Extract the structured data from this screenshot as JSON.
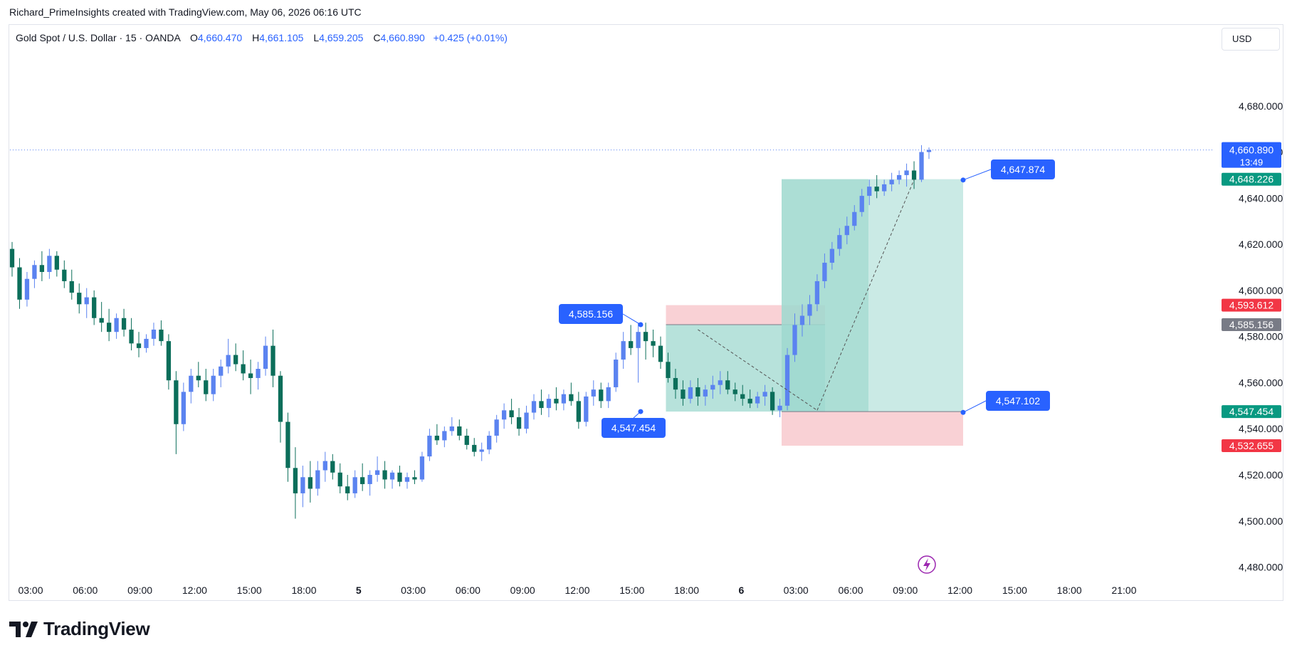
{
  "attribution": "Richard_PrimeInsights created with TradingView.com, May 06, 2026 06:16 UTC",
  "legend": {
    "symbol": "Gold Spot / U.S. Dollar · 15 · OANDA",
    "open_label": "O",
    "open": "4,660.470",
    "high_label": "H",
    "high": "4,661.105",
    "low_label": "L",
    "low": "4,659.205",
    "close_label": "C",
    "close": "4,660.890",
    "change": "+0.425 (+0.01%)"
  },
  "currency": "USD",
  "brand": "TradingView",
  "colors": {
    "up": "#5b83f0",
    "down": "#0b6e5a",
    "accent": "#2962ff",
    "profit_zone": "#9fd8cf",
    "loss_zone": "#f7c6cb",
    "red_label": "#f23645",
    "grey_label": "#787b86",
    "green_label": "#089981"
  },
  "chart_data": {
    "type": "candlestick",
    "y_ticks": [
      "4,680.000",
      "4,660.000",
      "4,640.000",
      "4,620.000",
      "4,600.000",
      "4,580.000",
      "4,560.000",
      "4,540.000",
      "4,520.000",
      "4,500.000",
      "4,480.000"
    ],
    "x_ticks": [
      "03:00",
      "06:00",
      "09:00",
      "12:00",
      "15:00",
      "18:00",
      "5",
      "03:00",
      "06:00",
      "09:00",
      "12:00",
      "15:00",
      "18:00",
      "6",
      "03:00",
      "06:00",
      "09:00",
      "12:00",
      "15:00",
      "18:00",
      "21:00"
    ],
    "ylim": [
      4474,
      4700
    ],
    "price_line": 4660.89,
    "price_countdown": "13:49",
    "price_labels": [
      {
        "value": 4660.89,
        "text": "4,660.890",
        "kind": "current"
      },
      {
        "value": 4648.226,
        "text": "4,648.226",
        "kind": "green"
      },
      {
        "value": 4593.612,
        "text": "4,593.612",
        "kind": "red"
      },
      {
        "value": 4585.156,
        "text": "4,585.156",
        "kind": "grey"
      },
      {
        "value": 4547.454,
        "text": "4,547.454",
        "kind": "green"
      },
      {
        "value": 4532.655,
        "text": "4,532.655",
        "kind": "red"
      }
    ],
    "callouts": [
      {
        "text": "4,585.156",
        "value": 4585.156
      },
      {
        "text": "4,547.454",
        "value": 4547.454
      },
      {
        "text": "4,647.874",
        "value": 4647.874
      },
      {
        "text": "4,547.102",
        "value": 4547.102
      }
    ],
    "positions": [
      {
        "entry": 4585.156,
        "target": 4547.454,
        "stop": 4593.612,
        "direction": "short"
      },
      {
        "entry": 4547.454,
        "target": 4648.226,
        "stop": 4532.655,
        "direction": "long"
      }
    ],
    "candles_ohlc": [
      [
        4618,
        4621,
        4606,
        4610
      ],
      [
        4610,
        4614,
        4592,
        4596
      ],
      [
        4596,
        4608,
        4593,
        4605
      ],
      [
        4605,
        4613,
        4601,
        4611
      ],
      [
        4611,
        4617,
        4604,
        4608
      ],
      [
        4608,
        4618,
        4605,
        4615
      ],
      [
        4615,
        4617,
        4606,
        4609
      ],
      [
        4609,
        4613,
        4601,
        4604
      ],
      [
        4604,
        4609,
        4596,
        4599
      ],
      [
        4599,
        4603,
        4590,
        4594
      ],
      [
        4594,
        4601,
        4588,
        4597
      ],
      [
        4597,
        4600,
        4585,
        4588
      ],
      [
        4588,
        4595,
        4582,
        4586
      ],
      [
        4586,
        4592,
        4578,
        4582
      ],
      [
        4582,
        4590,
        4579,
        4588
      ],
      [
        4588,
        4592,
        4580,
        4583
      ],
      [
        4583,
        4588,
        4574,
        4577
      ],
      [
        4577,
        4582,
        4571,
        4575
      ],
      [
        4575,
        4581,
        4573,
        4579
      ],
      [
        4579,
        4586,
        4576,
        4583
      ],
      [
        4583,
        4587,
        4576,
        4578
      ],
      [
        4578,
        4581,
        4557,
        4561
      ],
      [
        4561,
        4565,
        4529,
        4542
      ],
      [
        4542,
        4560,
        4539,
        4556
      ],
      [
        4556,
        4566,
        4551,
        4563
      ],
      [
        4563,
        4569,
        4558,
        4561
      ],
      [
        4561,
        4566,
        4552,
        4555
      ],
      [
        4555,
        4566,
        4552,
        4563
      ],
      [
        4563,
        4570,
        4558,
        4567
      ],
      [
        4567,
        4579,
        4564,
        4572
      ],
      [
        4572,
        4577,
        4565,
        4568
      ],
      [
        4568,
        4574,
        4561,
        4564
      ],
      [
        4564,
        4570,
        4555,
        4562
      ],
      [
        4562,
        4569,
        4557,
        4566
      ],
      [
        4566,
        4580,
        4563,
        4576
      ],
      [
        4576,
        4583,
        4558,
        4563
      ],
      [
        4563,
        4565,
        4534,
        4543
      ],
      [
        4543,
        4547,
        4517,
        4523
      ],
      [
        4523,
        4532,
        4501,
        4512
      ],
      [
        4512,
        4524,
        4506,
        4519
      ],
      [
        4519,
        4526,
        4508,
        4514
      ],
      [
        4514,
        4526,
        4511,
        4522
      ],
      [
        4522,
        4530,
        4517,
        4526
      ],
      [
        4526,
        4529,
        4518,
        4521
      ],
      [
        4521,
        4525,
        4512,
        4515
      ],
      [
        4515,
        4520,
        4509,
        4512
      ],
      [
        4512,
        4522,
        4510,
        4519
      ],
      [
        4519,
        4525,
        4513,
        4516
      ],
      [
        4516,
        4522,
        4511,
        4520
      ],
      [
        4520,
        4528,
        4517,
        4522
      ],
      [
        4522,
        4526,
        4514,
        4518
      ],
      [
        4518,
        4522,
        4514,
        4521
      ],
      [
        4521,
        4524,
        4515,
        4517
      ],
      [
        4517,
        4521,
        4514,
        4519
      ],
      [
        4519,
        4522,
        4516,
        4518
      ],
      [
        4518,
        4530,
        4517,
        4528
      ],
      [
        4528,
        4540,
        4526,
        4537
      ],
      [
        4537,
        4542,
        4533,
        4535
      ],
      [
        4535,
        4541,
        4532,
        4539
      ],
      [
        4539,
        4545,
        4537,
        4541
      ],
      [
        4541,
        4544,
        4535,
        4537
      ],
      [
        4537,
        4540,
        4531,
        4533
      ],
      [
        4533,
        4536,
        4528,
        4530
      ],
      [
        4530,
        4534,
        4526,
        4531
      ],
      [
        4531,
        4539,
        4529,
        4537
      ],
      [
        4537,
        4546,
        4534,
        4544
      ],
      [
        4544,
        4551,
        4540,
        4548
      ],
      [
        4548,
        4553,
        4542,
        4545
      ],
      [
        4545,
        4549,
        4537,
        4540
      ],
      [
        4540,
        4550,
        4538,
        4547
      ],
      [
        4547,
        4555,
        4544,
        4552
      ],
      [
        4552,
        4557,
        4546,
        4549
      ],
      [
        4549,
        4555,
        4545,
        4553
      ],
      [
        4553,
        4558,
        4548,
        4551
      ],
      [
        4551,
        4557,
        4548,
        4555
      ],
      [
        4555,
        4560,
        4550,
        4552
      ],
      [
        4552,
        4556,
        4540,
        4543
      ],
      [
        4543,
        4556,
        4541,
        4554
      ],
      [
        4554,
        4561,
        4550,
        4557
      ],
      [
        4557,
        4560,
        4549,
        4552
      ],
      [
        4552,
        4560,
        4549,
        4558
      ],
      [
        4558,
        4573,
        4556,
        4570
      ],
      [
        4570,
        4582,
        4566,
        4578
      ],
      [
        4578,
        4585,
        4572,
        4575
      ],
      [
        4575,
        4586,
        4560,
        4582
      ],
      [
        4582,
        4586,
        4570,
        4578
      ],
      [
        4578,
        4583,
        4571,
        4576
      ],
      [
        4576,
        4580,
        4566,
        4569
      ],
      [
        4569,
        4573,
        4560,
        4562
      ],
      [
        4562,
        4566,
        4553,
        4557
      ],
      [
        4557,
        4561,
        4550,
        4553
      ],
      [
        4553,
        4561,
        4551,
        4558
      ],
      [
        4558,
        4562,
        4550,
        4554
      ],
      [
        4554,
        4559,
        4550,
        4557
      ],
      [
        4557,
        4563,
        4553,
        4559
      ],
      [
        4559,
        4565,
        4555,
        4561
      ],
      [
        4561,
        4565,
        4555,
        4557
      ],
      [
        4557,
        4560,
        4552,
        4555
      ],
      [
        4555,
        4559,
        4550,
        4553
      ],
      [
        4553,
        4557,
        4549,
        4551
      ],
      [
        4551,
        4556,
        4549,
        4554
      ],
      [
        4554,
        4559,
        4550,
        4556
      ],
      [
        4556,
        4558,
        4546,
        4548
      ],
      [
        4548,
        4553,
        4545,
        4550
      ],
      [
        4550,
        4575,
        4548,
        4572
      ],
      [
        4572,
        4590,
        4569,
        4585
      ],
      [
        4585,
        4594,
        4580,
        4589
      ],
      [
        4589,
        4598,
        4585,
        4594
      ],
      [
        4594,
        4607,
        4591,
        4604
      ],
      [
        4604,
        4616,
        4601,
        4612
      ],
      [
        4612,
        4621,
        4609,
        4618
      ],
      [
        4618,
        4627,
        4615,
        4624
      ],
      [
        4624,
        4632,
        4620,
        4628
      ],
      [
        4628,
        4637,
        4626,
        4634
      ],
      [
        4634,
        4644,
        4632,
        4641
      ],
      [
        4641,
        4648,
        4637,
        4645
      ],
      [
        4645,
        4650,
        4640,
        4643
      ],
      [
        4643,
        4648,
        4641,
        4646
      ],
      [
        4646,
        4651,
        4643,
        4648
      ],
      [
        4648,
        4652,
        4646,
        4650
      ],
      [
        4650,
        4655,
        4645,
        4652
      ],
      [
        4652,
        4656,
        4644,
        4648
      ],
      [
        4648,
        4663,
        4647,
        4660
      ],
      [
        4660,
        4662,
        4657,
        4660.89
      ]
    ]
  }
}
